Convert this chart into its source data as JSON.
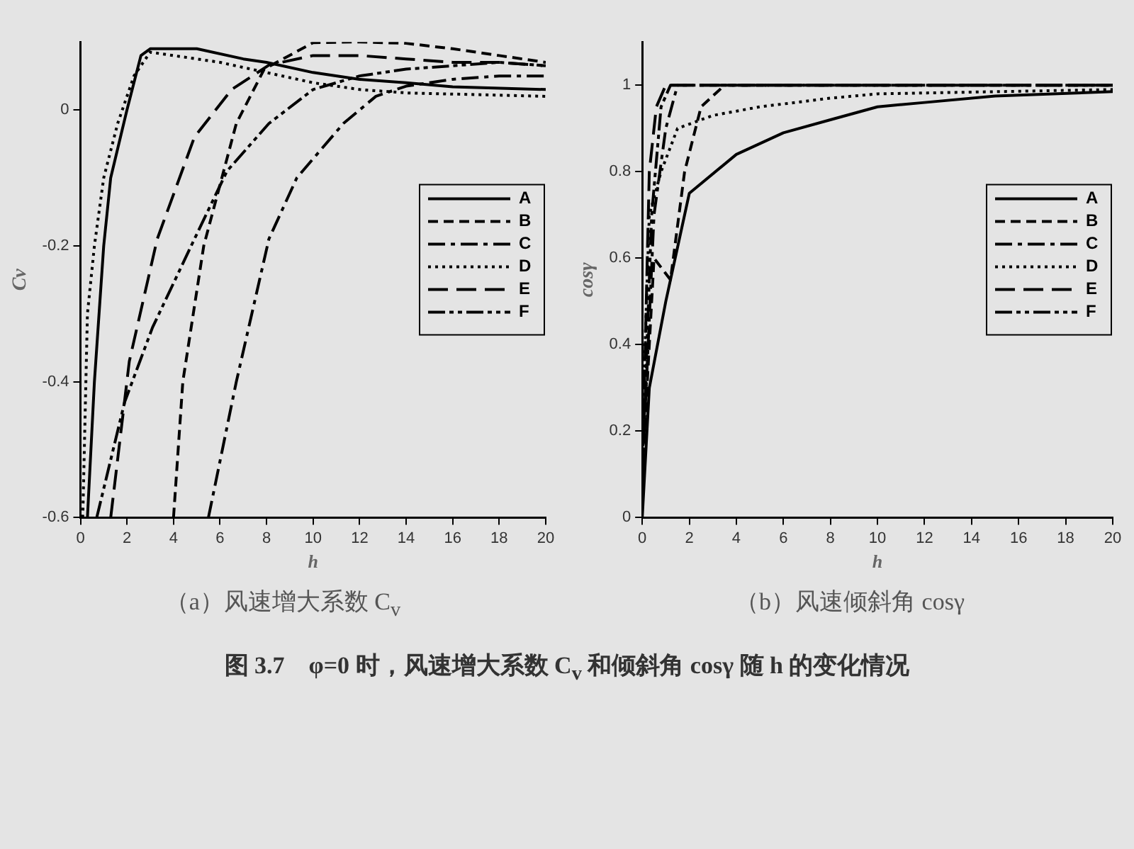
{
  "chart_data": [
    {
      "type": "line",
      "xlabel": "h",
      "ylabel": "Cv",
      "xlim": [
        0,
        20
      ],
      "xticks": [
        0,
        2,
        4,
        6,
        8,
        10,
        12,
        14,
        16,
        18,
        20
      ],
      "ylim": [
        -0.6,
        0.1
      ],
      "yticks": [
        -0.6,
        -0.4,
        -0.2,
        0
      ],
      "grid": false,
      "legend": "right",
      "marker": "none",
      "annotations": [
        "（a）风速增大系数 C$_{v}$",
        "图 3.7　φ=0 时，风速增大系数 C$_{v}$ 和倾斜角 cosγ 随 h 的变化情况"
      ],
      "series": [
        {
          "name": "A",
          "color": "#000000",
          "line_style": "solid",
          "x": [
            0.3,
            0.6,
            1,
            1.3,
            2,
            2.6,
            3,
            5,
            7,
            8,
            10,
            12,
            14,
            16,
            20
          ],
          "values": [
            -0.6,
            -0.4,
            -0.2,
            -0.1,
            0,
            0.08,
            0.09,
            0.09,
            0.075,
            0.07,
            0.055,
            0.045,
            0.04,
            0.034,
            0.03
          ]
        },
        {
          "name": "B",
          "color": "#000000",
          "line_style": "dashed",
          "x": [
            4,
            4.4,
            5.3,
            6.7,
            7.9,
            10,
            12,
            14,
            16,
            18,
            20
          ],
          "values": [
            -0.6,
            -0.4,
            -0.2,
            -0.02,
            0.06,
            0.099,
            0.1,
            0.098,
            0.09,
            0.08,
            0.07
          ]
        },
        {
          "name": "C",
          "color": "#000000",
          "line_style": "dashed",
          "x": [
            5.5,
            6.7,
            8.1,
            9.3,
            11.3,
            12.7,
            14,
            16,
            18,
            20
          ],
          "values": [
            -0.6,
            -0.4,
            -0.19,
            -0.1,
            -0.02,
            0.02,
            0.035,
            0.045,
            0.05,
            0.05
          ]
        },
        {
          "name": "D",
          "color": "#000000",
          "line_style": "dotted",
          "x": [
            0.1,
            0.3,
            0.6,
            1,
            1.6,
            2.3,
            3,
            4,
            6,
            8,
            10,
            12,
            14,
            20
          ],
          "values": [
            -0.6,
            -0.3,
            -0.2,
            -0.1,
            -0.02,
            0.05,
            0.085,
            0.08,
            0.07,
            0.055,
            0.04,
            0.03,
            0.025,
            0.02
          ]
        },
        {
          "name": "E",
          "color": "#000000",
          "line_style": "dashed",
          "x": [
            1.3,
            2.1,
            3.3,
            4.9,
            6.5,
            8.1,
            10,
            12,
            14,
            16,
            18,
            20
          ],
          "values": [
            -0.6,
            -0.37,
            -0.19,
            -0.04,
            0.03,
            0.066,
            0.08,
            0.08,
            0.075,
            0.07,
            0.07,
            0.065
          ]
        },
        {
          "name": "F",
          "color": "#000000",
          "line_style": "dashed",
          "x": [
            0.7,
            1.9,
            3.1,
            4.9,
            6.3,
            8.1,
            10,
            12,
            14,
            16,
            18,
            20
          ],
          "values": [
            -0.6,
            -0.43,
            -0.32,
            -0.19,
            -0.09,
            -0.02,
            0.03,
            0.05,
            0.06,
            0.065,
            0.07,
            0.065
          ]
        }
      ]
    },
    {
      "type": "line",
      "xlabel": "h",
      "ylabel": "cosγ",
      "xlim": [
        0,
        20
      ],
      "xticks": [
        0,
        2,
        4,
        6,
        8,
        10,
        12,
        14,
        16,
        18,
        20
      ],
      "ylim": [
        0,
        1.1
      ],
      "yticks": [
        0,
        0.2,
        0.4,
        0.6,
        0.8,
        1
      ],
      "grid": false,
      "legend": "right",
      "marker": "none",
      "annotations": [
        "（b）风速倾斜角 cosγ"
      ],
      "series": [
        {
          "name": "A",
          "color": "#000000",
          "line_style": "solid",
          "x": [
            0,
            0.3,
            1,
            2,
            4,
            6,
            8,
            10,
            12,
            15,
            20
          ],
          "values": [
            0,
            0.3,
            0.5,
            0.75,
            0.84,
            0.89,
            0.92,
            0.95,
            0.96,
            0.975,
            0.985
          ]
        },
        {
          "name": "B",
          "color": "#000000",
          "line_style": "dashed",
          "x": [
            0,
            0.5,
            1.2,
            1.8,
            2.5,
            3.5,
            20
          ],
          "values": [
            0.1,
            0.6,
            0.55,
            0.8,
            0.95,
            1,
            1
          ]
        },
        {
          "name": "C",
          "color": "#000000",
          "line_style": "dashed",
          "x": [
            0,
            0.5,
            1,
            1.5,
            20
          ],
          "values": [
            0.1,
            0.7,
            0.9,
            1,
            1
          ]
        },
        {
          "name": "D",
          "color": "#000000",
          "line_style": "dotted",
          "x": [
            0,
            0.3,
            0.8,
            1.5,
            3,
            5,
            8,
            10,
            20
          ],
          "values": [
            0.2,
            0.7,
            0.8,
            0.9,
            0.93,
            0.95,
            0.97,
            0.98,
            0.99
          ]
        },
        {
          "name": "E",
          "color": "#000000",
          "line_style": "dashed",
          "x": [
            0,
            0.3,
            0.6,
            1,
            20
          ],
          "values": [
            0.1,
            0.8,
            0.95,
            1,
            1
          ]
        },
        {
          "name": "F",
          "color": "#000000",
          "line_style": "dashed",
          "x": [
            0,
            0.4,
            0.8,
            1.2,
            20
          ],
          "values": [
            0.1,
            0.7,
            0.95,
            1,
            1
          ]
        }
      ]
    }
  ]
}
